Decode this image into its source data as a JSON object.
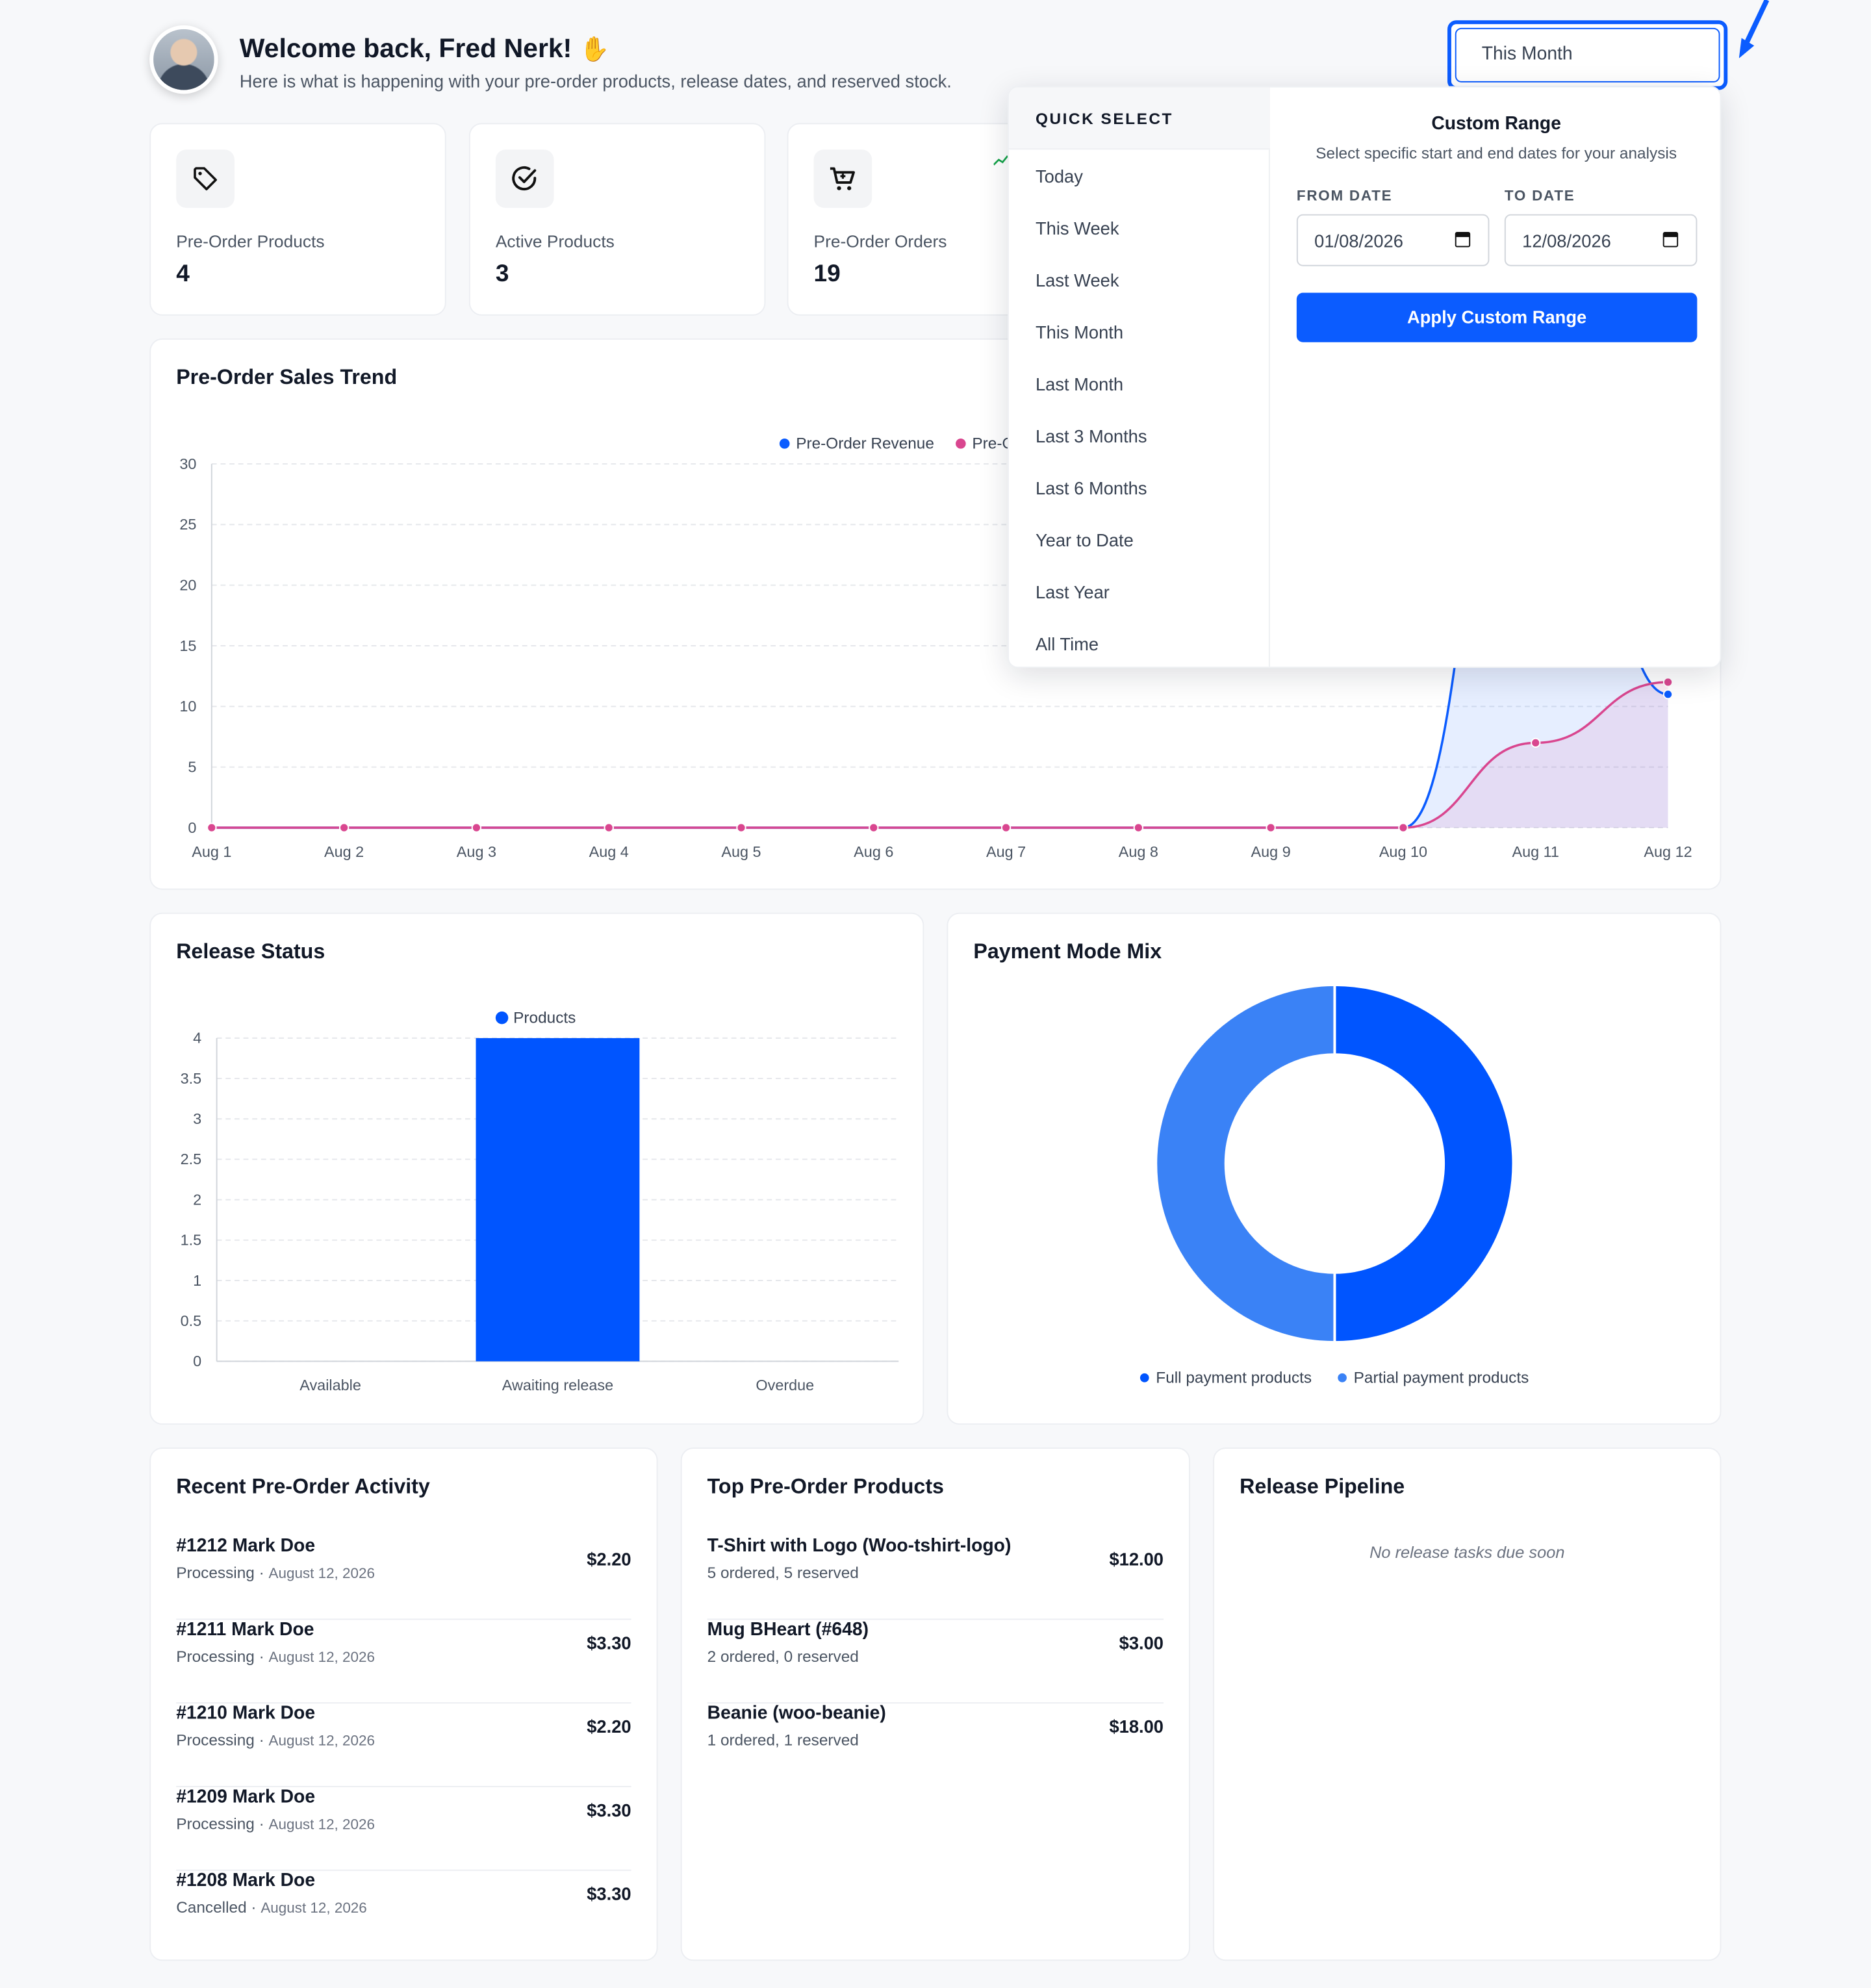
{
  "header": {
    "welcome": "Welcome back, Fred Nerk!",
    "wave_icon": "waving-hand-icon",
    "subtitle": "Here is what is happening with your pre-order products, release dates, and reserved stock."
  },
  "date_range": {
    "selected": "This Month",
    "quick_select_title": "QUICK SELECT",
    "options": [
      "Today",
      "This Week",
      "Last Week",
      "This Month",
      "Last Month",
      "Last 3 Months",
      "Last 6 Months",
      "Year to Date",
      "Last Year",
      "All Time"
    ],
    "custom": {
      "title": "Custom Range",
      "subtitle": "Select specific start and end dates for your analysis",
      "from_label": "FROM DATE",
      "from_value": "01/08/2026",
      "to_label": "TO DATE",
      "to_value": "12/08/2026",
      "apply_label": "Apply Custom Range"
    }
  },
  "stats": [
    {
      "label": "Pre-Order Products",
      "value": "4",
      "icon": "tag-icon"
    },
    {
      "label": "Active Products",
      "value": "3",
      "icon": "check-circle-icon"
    },
    {
      "label": "Pre-Order Orders",
      "value": "19",
      "icon": "cart-icon"
    }
  ],
  "sales_trend": {
    "title": "Pre-Order Sales Trend",
    "legend_revenue": "Pre-Order Revenue",
    "legend_orders_partial": "Pre-O"
  },
  "release_status": {
    "title": "Release Status",
    "legend": "Products"
  },
  "payment_mix": {
    "title": "Payment Mode Mix",
    "legend_full": "Full payment products",
    "legend_partial": "Partial payment products"
  },
  "chart_data": [
    {
      "type": "line",
      "title": "Pre-Order Sales Trend",
      "x": [
        "Aug 1",
        "Aug 2",
        "Aug 3",
        "Aug 4",
        "Aug 5",
        "Aug 6",
        "Aug 7",
        "Aug 8",
        "Aug 9",
        "Aug 10",
        "Aug 11",
        "Aug 12"
      ],
      "yticks": [
        "0",
        "5",
        "10",
        "15",
        "20",
        "25",
        "30"
      ],
      "ylim": [
        0,
        30
      ],
      "series": [
        {
          "name": "Pre-Order Revenue",
          "color": "#0b5cff",
          "values": [
            0,
            0,
            0,
            0,
            0,
            0,
            0,
            0,
            0,
            0,
            46,
            11
          ]
        },
        {
          "color": "#d9468f",
          "values": [
            0,
            0,
            0,
            0,
            0,
            0,
            0,
            0,
            0,
            0,
            7,
            12
          ]
        }
      ],
      "grid": true,
      "legend": "top"
    },
    {
      "type": "bar",
      "title": "Release Status",
      "categories": [
        "Available",
        "Awaiting release",
        "Overdue"
      ],
      "yticks": [
        "0",
        "0.5",
        "1",
        "1.5",
        "2",
        "2.5",
        "3",
        "3.5",
        "4"
      ],
      "ylim": [
        0,
        4
      ],
      "series": [
        {
          "name": "Products",
          "color": "#0055ff",
          "values": [
            0,
            4,
            0
          ]
        }
      ],
      "grid": true,
      "legend": "top"
    },
    {
      "type": "pie",
      "title": "Payment Mode Mix",
      "labels": [
        "Full payment products",
        "Partial payment products"
      ],
      "values": [
        50,
        50
      ],
      "colors": [
        "#0055ff",
        "#3a82f6"
      ],
      "legend": "bottom"
    }
  ],
  "recent_activity": {
    "title": "Recent Pre-Order Activity",
    "items": [
      {
        "title": "#1212 Mark Doe",
        "status": "Processing",
        "date": "August 12, 2026",
        "amount": "$2.20"
      },
      {
        "title": "#1211 Mark Doe",
        "status": "Processing",
        "date": "August 12, 2026",
        "amount": "$3.30"
      },
      {
        "title": "#1210 Mark Doe",
        "status": "Processing",
        "date": "August 12, 2026",
        "amount": "$2.20"
      },
      {
        "title": "#1209 Mark Doe",
        "status": "Processing",
        "date": "August 12, 2026",
        "amount": "$3.30"
      },
      {
        "title": "#1208 Mark Doe",
        "status": "Cancelled",
        "date": "August 12, 2026",
        "amount": "$3.30"
      }
    ]
  },
  "top_products": {
    "title": "Top Pre-Order Products",
    "items": [
      {
        "title": "T-Shirt with Logo (Woo-tshirt-logo)",
        "sub": "5 ordered, 5 reserved",
        "amount": "$12.00"
      },
      {
        "title": "Mug BHeart (#648)",
        "sub": "2 ordered, 0 reserved",
        "amount": "$3.00"
      },
      {
        "title": "Beanie (woo-beanie)",
        "sub": "1 ordered, 1 reserved",
        "amount": "$18.00"
      }
    ]
  },
  "release_pipeline": {
    "title": "Release Pipeline",
    "empty": "No release tasks due soon"
  },
  "colors": {
    "accent": "#0b5cff",
    "bar": "#0055ff",
    "pie_secondary": "#3a82f6",
    "secondary_line": "#d9468f"
  }
}
